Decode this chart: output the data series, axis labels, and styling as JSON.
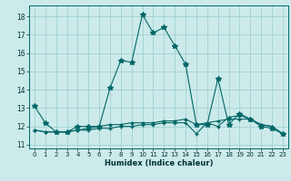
{
  "xlabel": "Humidex (Indice chaleur)",
  "background_color": "#cceaea",
  "grid_color": "#99cccc",
  "line_color": "#006666",
  "xlim": [
    -0.5,
    23.5
  ],
  "ylim": [
    10.8,
    18.6
  ],
  "yticks": [
    11,
    12,
    13,
    14,
    15,
    16,
    17,
    18
  ],
  "xticks": [
    0,
    1,
    2,
    3,
    4,
    5,
    6,
    7,
    8,
    9,
    10,
    11,
    12,
    13,
    14,
    15,
    16,
    17,
    18,
    19,
    20,
    21,
    22,
    23
  ],
  "series1_x": [
    0,
    1,
    2,
    3,
    4,
    5,
    6,
    7,
    8,
    9,
    10,
    11,
    12,
    13,
    14,
    15,
    16,
    17,
    18,
    19,
    20,
    21,
    22,
    23
  ],
  "series1_y": [
    13.1,
    12.2,
    11.7,
    11.7,
    12.0,
    12.0,
    12.0,
    14.1,
    15.6,
    15.5,
    18.1,
    17.1,
    17.4,
    16.4,
    15.4,
    12.1,
    12.1,
    14.6,
    12.1,
    12.7,
    12.4,
    12.0,
    11.9,
    11.6
  ],
  "series2_x": [
    0,
    1,
    2,
    3,
    4,
    5,
    6,
    7,
    8,
    9,
    10,
    11,
    12,
    13,
    14,
    15,
    16,
    17,
    18,
    19,
    20,
    21,
    22,
    23
  ],
  "series2_y": [
    11.8,
    11.7,
    11.7,
    11.7,
    11.8,
    11.8,
    11.9,
    11.9,
    12.0,
    12.0,
    12.1,
    12.1,
    12.2,
    12.2,
    12.2,
    11.6,
    12.2,
    12.3,
    12.4,
    12.4,
    12.4,
    12.1,
    12.0,
    11.6
  ],
  "series3_x": [
    0,
    1,
    2,
    3,
    4,
    5,
    6,
    7,
    8,
    9,
    10,
    11,
    12,
    13,
    14,
    15,
    16,
    17,
    18,
    19,
    20,
    21,
    22,
    23
  ],
  "series3_y": [
    11.8,
    11.7,
    11.7,
    11.7,
    11.8,
    11.9,
    12.0,
    12.1,
    12.1,
    12.2,
    12.2,
    12.2,
    12.3,
    12.3,
    12.4,
    12.1,
    12.2,
    12.0,
    12.5,
    12.6,
    12.4,
    12.1,
    12.0,
    11.6
  ]
}
